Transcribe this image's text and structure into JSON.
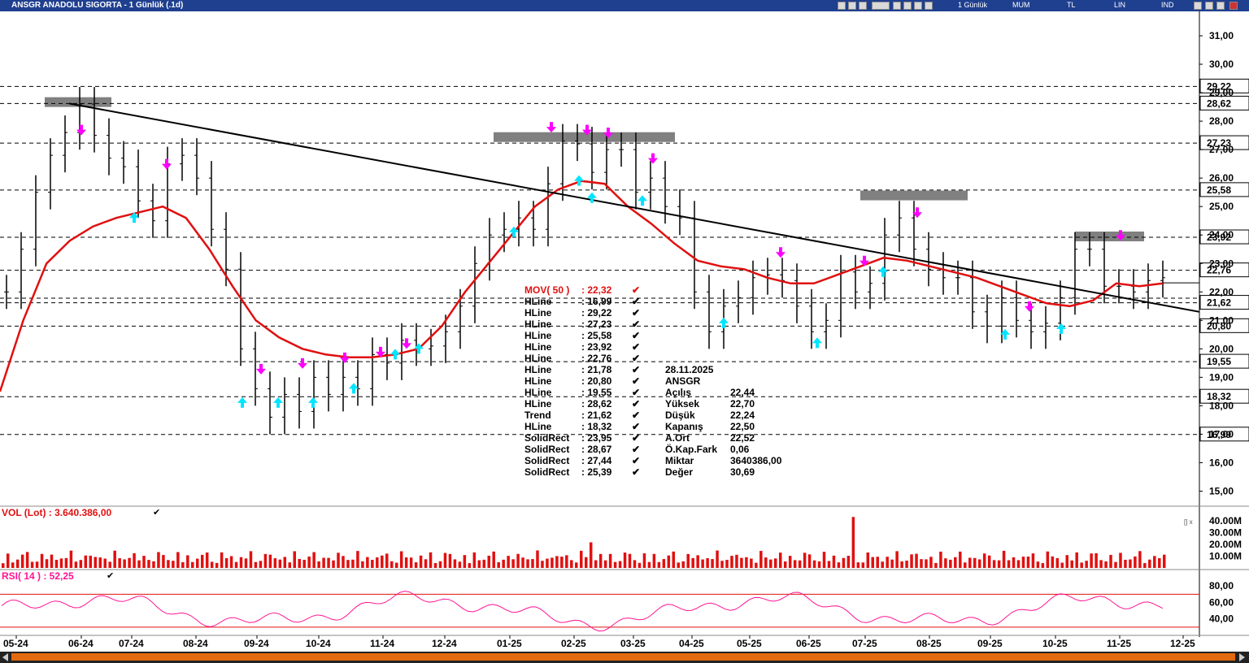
{
  "window": {
    "title": "ANSGR ANADOLU SIGORTA - 1 Günlük (.1d)",
    "toolbar": [
      "1 Günlük",
      "MUM",
      "TL",
      "LIN",
      "IND"
    ]
  },
  "colors": {
    "price_bars": "#000000",
    "mov_line": "#e01010",
    "trend_line": "#000000",
    "hline": "#000000",
    "solid_rect": "#808080",
    "buy_arrow": "#00e5ff",
    "sell_arrow": "#ff00ff",
    "volume": "#e01010",
    "rsi": "#ff1493",
    "rsi_levels": "#e01010",
    "title_bar": "#1f3f8f",
    "scrollbar": "#e36a0e"
  },
  "legend": {
    "mov": {
      "label": "MOV( 50 )",
      "value": ": 22,32"
    },
    "items": [
      {
        "label": "HLine",
        "value": ": 16,99"
      },
      {
        "label": "HLine",
        "value": ": 29,22"
      },
      {
        "label": "HLine",
        "value": ": 27,23"
      },
      {
        "label": "HLine",
        "value": ": 25,58"
      },
      {
        "label": "HLine",
        "value": ": 23,92"
      },
      {
        "label": "HLine",
        "value": ": 22,76"
      },
      {
        "label": "HLine",
        "value": ": 21,78"
      },
      {
        "label": "HLine",
        "value": ": 20,80"
      },
      {
        "label": "HLine",
        "value": ": 19,55"
      },
      {
        "label": "HLine",
        "value": ": 28,62"
      },
      {
        "label": "Trend",
        "value": ": 21,62"
      },
      {
        "label": "HLine",
        "value": ": 18,32"
      },
      {
        "label": "SolidRect",
        "value": ": 23,95"
      },
      {
        "label": "SolidRect",
        "value": ": 28,67"
      },
      {
        "label": "SolidRect",
        "value": ": 27,44"
      },
      {
        "label": "SolidRect",
        "value": ": 25,39"
      }
    ]
  },
  "info": {
    "date": "28.11.2025",
    "symbol": "ANSGR",
    "rows": [
      {
        "label": "Açılış",
        "value": "22,44"
      },
      {
        "label": "Yüksek",
        "value": "22,70"
      },
      {
        "label": "Düşük",
        "value": "22,24"
      },
      {
        "label": "Kapanış",
        "value": "22,50"
      },
      {
        "label": "A.Ort",
        "value": "22,52"
      },
      {
        "label": "Ö.Kap.Fark",
        "value": "0,06"
      },
      {
        "label": "Miktar",
        "value": "3640386,00"
      },
      {
        "label": "Değer",
        "value": "30,69"
      }
    ]
  },
  "vol_label": "VOL (Lot)   : 3.640.386,00",
  "rsi_label": "RSI( 14 )   : 52,25",
  "chart_data": {
    "type": "line",
    "title": "ANSGR ANADOLU SIGORTA - 1 Günlük (.1d)",
    "x_ticks": [
      "05-24",
      "06-24",
      "07-24",
      "08-24",
      "09-24",
      "10-24",
      "11-24",
      "12-24",
      "01-25",
      "02-25",
      "03-25",
      "04-25",
      "05-25",
      "06-25",
      "07-25",
      "08-25",
      "09-25",
      "10-25",
      "11-25",
      "12-25"
    ],
    "price_axis": {
      "ylim": [
        14.5,
        31.8
      ],
      "ticks": [
        "15,00",
        "16,00",
        "17,00",
        "18,00",
        "19,00",
        "20,00",
        "21,00",
        "22,00",
        "23,00",
        "24,00",
        "25,00",
        "26,00",
        "27,00",
        "28,00",
        "29,00",
        "30,00",
        "31,00"
      ]
    },
    "price_close": [
      22.0,
      23.5,
      25.5,
      26.8,
      27.6,
      28.6,
      27.5,
      26.7,
      26.4,
      25.2,
      24.5,
      26.5,
      26.8,
      26.0,
      24.2,
      22.8,
      20.0,
      18.6,
      17.6,
      18.4,
      17.8,
      19.0,
      18.4,
      19.0,
      18.6,
      19.8,
      19.5,
      20.3,
      20.0,
      20.1,
      20.6,
      21.5,
      23.0,
      24.0,
      24.2,
      24.6,
      24.2,
      25.8,
      27.3,
      27.2,
      26.2,
      27.0,
      27.0,
      25.5,
      26.0,
      25.0,
      24.6,
      22.0,
      20.6,
      21.5,
      21.8,
      22.5,
      22.6,
      22.4,
      21.5,
      20.6,
      21.0,
      22.7,
      22.0,
      22.3,
      24.0,
      24.6,
      23.5,
      22.8,
      22.5,
      22.5,
      21.3,
      20.8,
      21.8,
      21.0,
      20.6,
      20.9,
      21.8,
      23.5,
      23.5,
      22.2,
      22.2,
      22.0,
      22.4,
      22.5
    ],
    "mov50": [
      18.5,
      21.0,
      23.0,
      23.8,
      24.3,
      24.6,
      24.8,
      25.0,
      24.6,
      23.5,
      22.2,
      21.0,
      20.4,
      20.0,
      19.8,
      19.7,
      19.7,
      19.8,
      20.0,
      20.8,
      22.0,
      23.0,
      24.0,
      25.0,
      25.6,
      25.9,
      25.8,
      25.0,
      24.4,
      23.7,
      23.1,
      22.9,
      22.8,
      22.5,
      22.3,
      22.3,
      22.6,
      22.9,
      23.2,
      23.1,
      22.9,
      22.7,
      22.5,
      22.2,
      21.9,
      21.6,
      21.5,
      21.7,
      22.3,
      22.2,
      22.3
    ],
    "trendline": {
      "from_price": 28.62,
      "from_label": "06-24",
      "to_price": 21.62,
      "to_label": "12-25"
    },
    "hlines": [
      29.22,
      28.62,
      27.23,
      25.58,
      23.92,
      22.76,
      21.78,
      20.8,
      19.55,
      18.32,
      16.99,
      21.62
    ],
    "price_labels": [
      "29,22",
      "28,62",
      "27,23",
      "25,58",
      "23,92",
      "22,76",
      "21,62",
      "20,80",
      "19,55",
      "18,32",
      "16,99"
    ],
    "solid_rects": [
      28.67,
      27.44,
      25.39,
      23.95
    ],
    "volume": {
      "axis_ticks": [
        "40.00M",
        "30.00M",
        "20.00M",
        "10.00M"
      ],
      "last": 3640386
    },
    "rsi": {
      "period": 14,
      "last": 52.25,
      "levels": [
        70,
        30
      ],
      "axis_ticks": [
        "80,00",
        "60,00",
        "40,00"
      ]
    }
  }
}
